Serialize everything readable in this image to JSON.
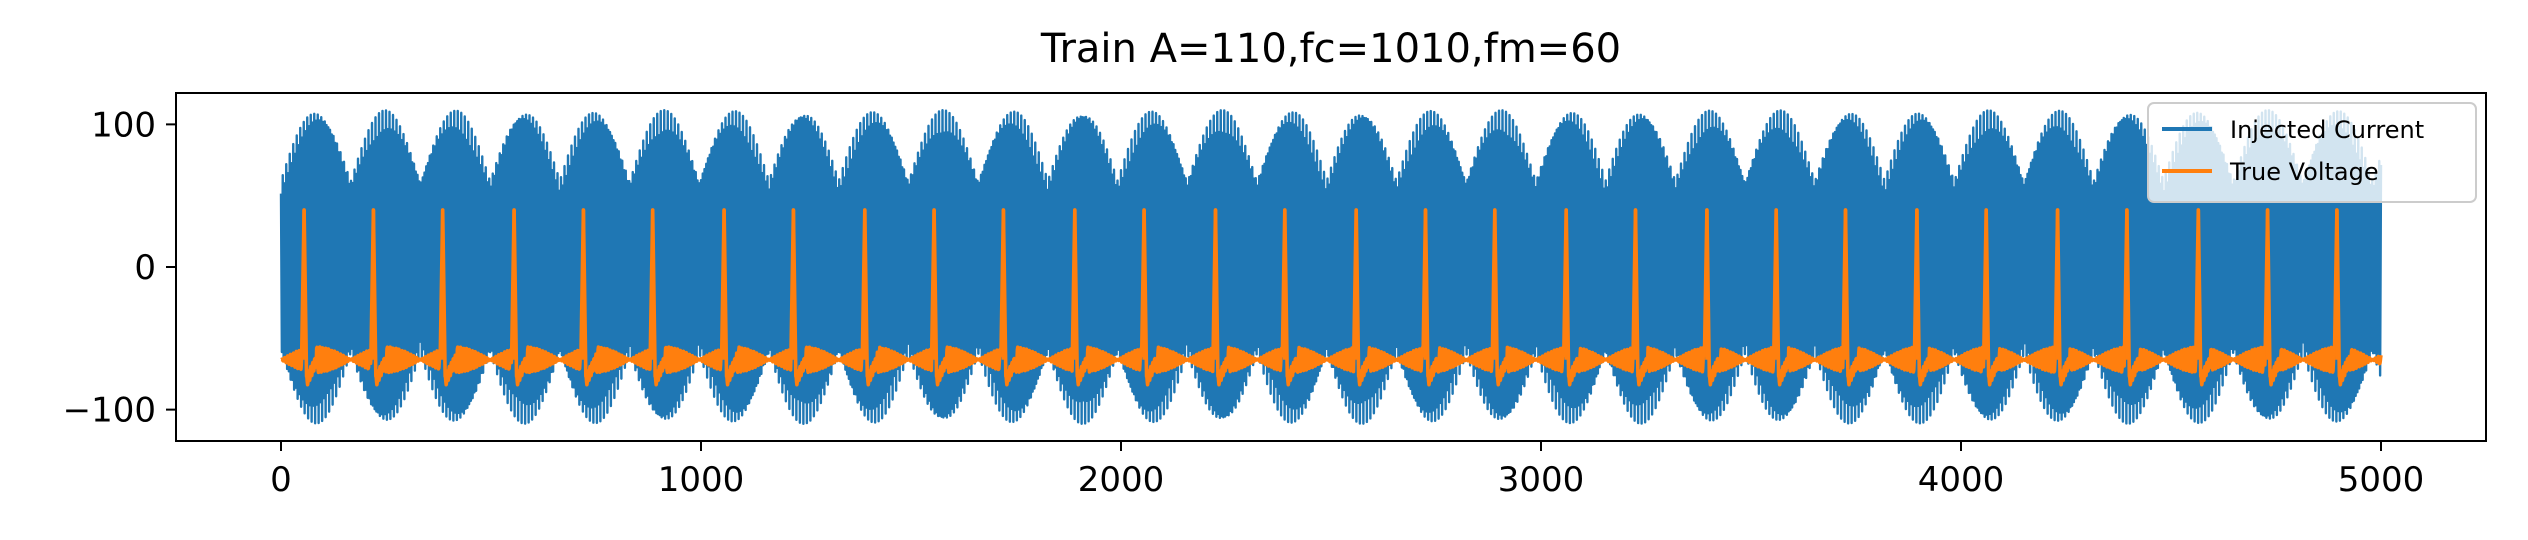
{
  "chart_data": {
    "type": "line",
    "title": "Train A=110,fc=1010,fm=60",
    "xlabel": "",
    "ylabel": "",
    "xlim": [
      -250,
      5250
    ],
    "ylim": [
      -122,
      122
    ],
    "xticks": [
      0,
      1000,
      2000,
      3000,
      4000,
      5000
    ],
    "xtick_labels": [
      "0",
      "1000",
      "2000",
      "3000",
      "4000",
      "5000"
    ],
    "yticks": [
      -100,
      0,
      100
    ],
    "ytick_labels": [
      "−100",
      "0",
      "100"
    ],
    "grid": false,
    "legend_position": "upper right",
    "series": [
      {
        "name": "Injected Current",
        "color": "#1f77b4",
        "signal": "amplitude-modulated sinusoid",
        "amplitude": 110,
        "carrier_frequency": 1010,
        "modulation_frequency": 60,
        "x_range": [
          0,
          5000
        ],
        "y_range": [
          -110,
          110
        ]
      },
      {
        "name": "True Voltage",
        "color": "#ff7f0e",
        "signal": "periodic spike train",
        "resting_level": -65,
        "peak_level": 40,
        "trough_level": -80,
        "x_range": [
          0,
          5000
        ],
        "spike_times": [
          55,
          220,
          385,
          555,
          720,
          885,
          1055,
          1220,
          1390,
          1555,
          1720,
          1890,
          2055,
          2225,
          2390,
          2560,
          2725,
          2890,
          3060,
          3225,
          3395,
          3560,
          3725,
          3895,
          4060,
          4230,
          4395,
          4565,
          4730,
          4895
        ]
      }
    ]
  }
}
